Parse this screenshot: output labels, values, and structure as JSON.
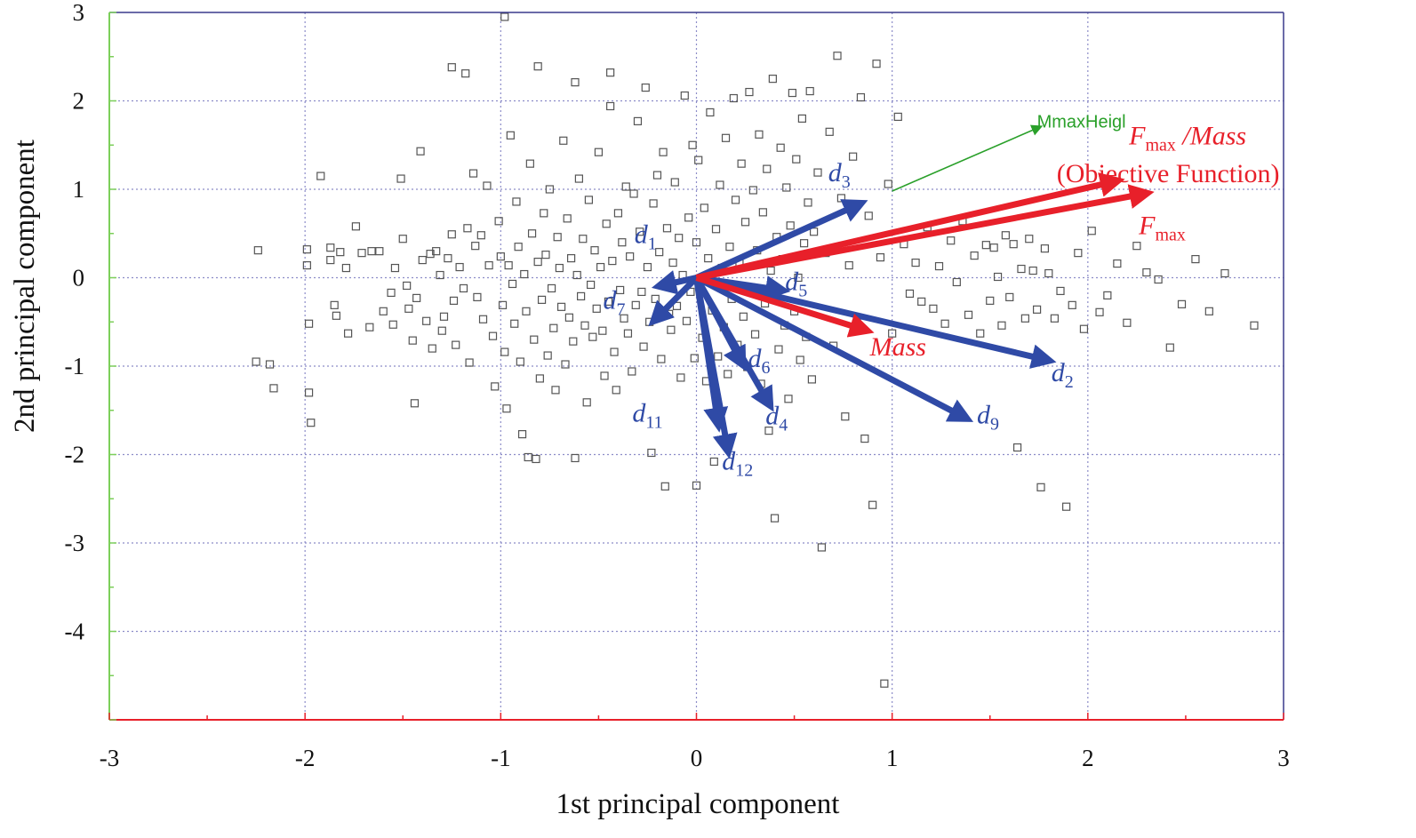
{
  "chart_data": {
    "type": "scatter",
    "title": "",
    "xlabel": "1st principal component",
    "ylabel": "2nd principal component",
    "xlim": [
      -3,
      3
    ],
    "ylim": [
      -5,
      3
    ],
    "xticks": [
      "-3",
      "-2",
      "-1",
      "0",
      "1",
      "2",
      "3"
    ],
    "yticks": [
      "-4",
      "-3",
      "-2",
      "-1",
      "0",
      "1",
      "2",
      "3"
    ],
    "grid": true,
    "colors": {
      "point": "#555555",
      "design_vector": "#2f4aa6",
      "objective_vector": "#e8202a",
      "minor_vector": "#2aa02a",
      "grid": "#8c8cc8",
      "left_axis": "#7ccf5a",
      "bottom_axis": "#e8202a",
      "frame": "#3a3a8c"
    },
    "points": [
      [
        -2.24,
        0.31
      ],
      [
        -2.25,
        -0.95
      ],
      [
        -2.18,
        -0.98
      ],
      [
        -2.16,
        -1.25
      ],
      [
        -1.99,
        0.32
      ],
      [
        -1.99,
        0.14
      ],
      [
        -1.98,
        -0.52
      ],
      [
        -1.98,
        -1.3
      ],
      [
        -1.97,
        -1.64
      ],
      [
        -1.92,
        1.15
      ],
      [
        -1.87,
        0.34
      ],
      [
        -1.87,
        0.2
      ],
      [
        -1.85,
        -0.31
      ],
      [
        -1.84,
        -0.43
      ],
      [
        -1.82,
        0.29
      ],
      [
        -1.79,
        0.11
      ],
      [
        -1.78,
        -0.63
      ],
      [
        -1.74,
        0.58
      ],
      [
        -1.71,
        0.28
      ],
      [
        -1.67,
        -0.56
      ],
      [
        -1.66,
        0.3
      ],
      [
        -1.62,
        0.3
      ],
      [
        -1.6,
        -0.38
      ],
      [
        -1.56,
        -0.17
      ],
      [
        -1.55,
        -0.53
      ],
      [
        -1.54,
        0.11
      ],
      [
        -1.51,
        1.12
      ],
      [
        -1.5,
        0.44
      ],
      [
        -1.48,
        -0.09
      ],
      [
        -1.47,
        -0.35
      ],
      [
        -1.45,
        -0.71
      ],
      [
        -1.44,
        -1.42
      ],
      [
        -1.43,
        -0.23
      ],
      [
        -1.41,
        1.43
      ],
      [
        -1.4,
        0.2
      ],
      [
        -1.38,
        -0.49
      ],
      [
        -1.36,
        0.27
      ],
      [
        -1.35,
        -0.8
      ],
      [
        -1.33,
        0.3
      ],
      [
        -1.31,
        0.03
      ],
      [
        -1.3,
        -0.6
      ],
      [
        -1.29,
        -0.44
      ],
      [
        -1.27,
        0.22
      ],
      [
        -1.25,
        0.49
      ],
      [
        -1.24,
        -0.26
      ],
      [
        -1.23,
        -0.76
      ],
      [
        -1.21,
        0.12
      ],
      [
        -1.19,
        -0.12
      ],
      [
        -1.17,
        0.56
      ],
      [
        -1.16,
        -0.96
      ],
      [
        -1.14,
        1.18
      ],
      [
        -1.13,
        0.36
      ],
      [
        -1.12,
        -0.22
      ],
      [
        -1.1,
        0.48
      ],
      [
        -1.09,
        -0.47
      ],
      [
        -1.07,
        1.04
      ],
      [
        -1.06,
        0.14
      ],
      [
        -1.04,
        -0.66
      ],
      [
        -1.03,
        -1.23
      ],
      [
        -1.01,
        0.64
      ],
      [
        -1.0,
        0.24
      ],
      [
        -0.99,
        -0.31
      ],
      [
        -0.98,
        -0.84
      ],
      [
        -0.97,
        -1.48
      ],
      [
        -0.96,
        0.14
      ],
      [
        -0.95,
        1.61
      ],
      [
        -0.94,
        -0.07
      ],
      [
        -0.93,
        -0.52
      ],
      [
        -0.92,
        0.86
      ],
      [
        -0.91,
        0.35
      ],
      [
        -0.9,
        -0.95
      ],
      [
        -0.89,
        -1.77
      ],
      [
        -0.88,
        0.04
      ],
      [
        -0.87,
        -0.38
      ],
      [
        -0.86,
        -2.03
      ],
      [
        -0.85,
        1.29
      ],
      [
        -0.84,
        0.5
      ],
      [
        -0.83,
        -0.7
      ],
      [
        -0.82,
        -2.05
      ],
      [
        -0.81,
        0.18
      ],
      [
        -0.8,
        -1.14
      ],
      [
        -0.79,
        -0.25
      ],
      [
        -0.78,
        0.73
      ],
      [
        -0.77,
        0.26
      ],
      [
        -0.76,
        -0.88
      ],
      [
        -0.75,
        1.0
      ],
      [
        -0.74,
        -0.12
      ],
      [
        -0.73,
        -0.57
      ],
      [
        -0.72,
        -1.27
      ],
      [
        -0.71,
        0.46
      ],
      [
        -0.7,
        0.11
      ],
      [
        -0.69,
        -0.33
      ],
      [
        -0.68,
        1.55
      ],
      [
        -0.67,
        -0.98
      ],
      [
        -0.66,
        0.67
      ],
      [
        -0.65,
        -0.45
      ],
      [
        -0.64,
        0.22
      ],
      [
        -0.63,
        -0.72
      ],
      [
        -0.62,
        -2.04
      ],
      [
        -0.61,
        0.03
      ],
      [
        -0.6,
        1.12
      ],
      [
        -0.59,
        -0.21
      ],
      [
        -0.58,
        0.44
      ],
      [
        -0.57,
        -0.54
      ],
      [
        -0.56,
        -1.41
      ],
      [
        -0.55,
        0.88
      ],
      [
        -0.54,
        -0.08
      ],
      [
        -0.53,
        -0.67
      ],
      [
        -0.52,
        0.31
      ],
      [
        -0.51,
        -0.35
      ],
      [
        -0.5,
        1.42
      ],
      [
        -0.49,
        0.12
      ],
      [
        -0.48,
        -0.6
      ],
      [
        -0.47,
        -1.11
      ],
      [
        -0.46,
        0.61
      ],
      [
        -0.45,
        -0.27
      ],
      [
        -0.44,
        1.94
      ],
      [
        -0.43,
        0.19
      ],
      [
        -0.42,
        -0.84
      ],
      [
        -0.41,
        -1.27
      ],
      [
        -0.4,
        0.73
      ],
      [
        -0.39,
        -0.14
      ],
      [
        -0.38,
        0.4
      ],
      [
        -0.37,
        -0.46
      ],
      [
        -0.36,
        1.03
      ],
      [
        -0.35,
        -0.63
      ],
      [
        -0.34,
        0.24
      ],
      [
        -0.33,
        -1.06
      ],
      [
        -0.32,
        0.95
      ],
      [
        -0.31,
        -0.31
      ],
      [
        -0.3,
        1.77
      ],
      [
        -0.29,
        0.52
      ],
      [
        -0.28,
        -0.16
      ],
      [
        -0.27,
        -0.78
      ],
      [
        -0.26,
        2.15
      ],
      [
        -0.25,
        0.12
      ],
      [
        -0.24,
        -0.5
      ],
      [
        -0.23,
        -1.98
      ],
      [
        -0.22,
        0.84
      ],
      [
        -0.21,
        -0.24
      ],
      [
        -0.2,
        1.16
      ],
      [
        -0.19,
        0.29
      ],
      [
        -0.18,
        -0.92
      ],
      [
        -0.17,
        1.42
      ],
      [
        -0.16,
        -2.36
      ],
      [
        -0.15,
        0.56
      ],
      [
        -0.14,
        -0.41
      ],
      [
        -0.13,
        -0.59
      ],
      [
        -0.12,
        0.17
      ],
      [
        -0.11,
        1.08
      ],
      [
        -0.1,
        -0.32
      ],
      [
        -0.09,
        0.45
      ],
      [
        -0.08,
        -1.13
      ],
      [
        -0.07,
        0.03
      ],
      [
        -0.06,
        2.06
      ],
      [
        -0.05,
        -0.49
      ],
      [
        -0.04,
        0.68
      ],
      [
        -0.03,
        -0.16
      ],
      [
        -0.02,
        1.5
      ],
      [
        -0.01,
        -0.91
      ],
      [
        0.0,
        0.4
      ],
      [
        0.0,
        -2.35
      ],
      [
        0.01,
        1.33
      ],
      [
        0.02,
        -0.05
      ],
      [
        0.03,
        -0.68
      ],
      [
        0.04,
        0.79
      ],
      [
        0.05,
        -1.17
      ],
      [
        0.06,
        0.22
      ],
      [
        0.07,
        1.87
      ],
      [
        0.08,
        -0.37
      ],
      [
        0.09,
        -2.08
      ],
      [
        0.1,
        0.55
      ],
      [
        0.11,
        -0.89
      ],
      [
        0.12,
        1.05
      ],
      [
        0.13,
        0.11
      ],
      [
        0.14,
        -0.56
      ],
      [
        0.15,
        1.58
      ],
      [
        0.16,
        -1.09
      ],
      [
        0.17,
        0.35
      ],
      [
        0.18,
        -0.24
      ],
      [
        0.19,
        2.03
      ],
      [
        0.2,
        0.88
      ],
      [
        0.21,
        -0.76
      ],
      [
        0.22,
        0.16
      ],
      [
        0.23,
        1.29
      ],
      [
        0.24,
        -0.44
      ],
      [
        0.25,
        0.63
      ],
      [
        0.26,
        -1.01
      ],
      [
        0.27,
        2.1
      ],
      [
        0.28,
        -0.11
      ],
      [
        0.29,
        0.99
      ],
      [
        0.3,
        -0.64
      ],
      [
        0.31,
        0.31
      ],
      [
        0.32,
        1.62
      ],
      [
        0.33,
        -1.2
      ],
      [
        0.34,
        0.74
      ],
      [
        0.35,
        -0.29
      ],
      [
        0.36,
        1.23
      ],
      [
        0.37,
        -1.73
      ],
      [
        0.38,
        0.08
      ],
      [
        0.39,
        2.25
      ],
      [
        0.4,
        -2.72
      ],
      [
        0.41,
        0.46
      ],
      [
        0.42,
        -0.81
      ],
      [
        0.43,
        1.47
      ],
      [
        0.44,
        0.21
      ],
      [
        0.45,
        -0.54
      ],
      [
        0.46,
        1.02
      ],
      [
        0.47,
        -1.37
      ],
      [
        0.48,
        0.59
      ],
      [
        0.49,
        2.09
      ],
      [
        0.5,
        -0.38
      ],
      [
        0.51,
        1.34
      ],
      [
        0.52,
        0.0
      ],
      [
        0.53,
        -0.93
      ],
      [
        0.54,
        1.8
      ],
      [
        0.55,
        0.39
      ],
      [
        0.56,
        -0.67
      ],
      [
        0.57,
        0.85
      ],
      [
        0.58,
        2.11
      ],
      [
        0.59,
        -1.15
      ],
      [
        0.6,
        0.52
      ],
      [
        0.62,
        1.19
      ],
      [
        0.64,
        -3.05
      ],
      [
        0.66,
        0.28
      ],
      [
        0.68,
        1.65
      ],
      [
        0.7,
        -0.77
      ],
      [
        0.72,
        2.51
      ],
      [
        0.74,
        0.9
      ],
      [
        0.76,
        -1.57
      ],
      [
        0.78,
        0.14
      ],
      [
        0.8,
        1.37
      ],
      [
        0.82,
        -0.48
      ],
      [
        0.84,
        2.04
      ],
      [
        0.86,
        -1.82
      ],
      [
        0.88,
        0.7
      ],
      [
        0.9,
        -2.57
      ],
      [
        0.92,
        2.42
      ],
      [
        0.94,
        0.23
      ],
      [
        0.96,
        -4.59
      ],
      [
        0.98,
        1.06
      ],
      [
        1.0,
        -0.63
      ],
      [
        1.03,
        1.82
      ],
      [
        1.06,
        0.38
      ],
      [
        1.09,
        -0.18
      ],
      [
        1.12,
        0.17
      ],
      [
        1.15,
        -0.27
      ],
      [
        1.18,
        0.57
      ],
      [
        1.21,
        -0.35
      ],
      [
        1.24,
        0.13
      ],
      [
        1.27,
        -0.52
      ],
      [
        1.3,
        0.42
      ],
      [
        1.33,
        -0.05
      ],
      [
        1.36,
        0.64
      ],
      [
        1.39,
        -0.42
      ],
      [
        1.42,
        0.25
      ],
      [
        1.45,
        -0.63
      ],
      [
        1.48,
        0.37
      ],
      [
        1.5,
        -0.26
      ],
      [
        1.52,
        0.34
      ],
      [
        1.54,
        0.01
      ],
      [
        1.56,
        -0.54
      ],
      [
        1.58,
        0.48
      ],
      [
        1.6,
        -0.22
      ],
      [
        1.62,
        0.38
      ],
      [
        1.64,
        -1.92
      ],
      [
        1.66,
        0.1
      ],
      [
        1.68,
        -0.46
      ],
      [
        1.7,
        0.44
      ],
      [
        1.72,
        0.08
      ],
      [
        1.74,
        -0.36
      ],
      [
        1.76,
        -2.37
      ],
      [
        1.78,
        0.33
      ],
      [
        1.8,
        0.05
      ],
      [
        1.83,
        -0.46
      ],
      [
        1.86,
        -0.15
      ],
      [
        1.89,
        -2.59
      ],
      [
        1.92,
        -0.31
      ],
      [
        1.95,
        0.28
      ],
      [
        1.98,
        -0.58
      ],
      [
        2.02,
        0.53
      ],
      [
        2.06,
        -0.39
      ],
      [
        2.1,
        -0.2
      ],
      [
        2.15,
        0.16
      ],
      [
        2.2,
        -0.51
      ],
      [
        2.25,
        0.36
      ],
      [
        2.3,
        0.06
      ],
      [
        2.36,
        -0.02
      ],
      [
        2.42,
        -0.79
      ],
      [
        2.48,
        -0.3
      ],
      [
        2.55,
        0.21
      ],
      [
        2.62,
        -0.38
      ],
      [
        2.7,
        0.05
      ],
      [
        2.85,
        -0.54
      ],
      [
        -0.98,
        2.95
      ],
      [
        -1.25,
        2.38
      ],
      [
        -1.18,
        2.31
      ],
      [
        -0.81,
        2.39
      ],
      [
        -0.62,
        2.21
      ],
      [
        -0.44,
        2.32
      ]
    ],
    "arrows": [
      {
        "name": "d_1",
        "kind": "design",
        "from": [
          0,
          0
        ],
        "to": [
          -0.18,
          -0.09
        ]
      },
      {
        "name": "d_7",
        "kind": "design",
        "from": [
          0,
          0
        ],
        "to": [
          -0.21,
          -0.47
        ]
      },
      {
        "name": "d_3",
        "kind": "design",
        "from": [
          0,
          0
        ],
        "to": [
          0.83,
          0.83
        ]
      },
      {
        "name": "d_5",
        "kind": "design",
        "from": [
          0,
          0
        ],
        "to": [
          0.43,
          -0.14
        ]
      },
      {
        "name": "d_2",
        "kind": "design",
        "from": [
          0,
          0
        ],
        "to": [
          1.79,
          -0.93
        ]
      },
      {
        "name": "d_9",
        "kind": "design",
        "from": [
          0,
          0
        ],
        "to": [
          1.37,
          -1.58
        ]
      },
      {
        "name": "d_6",
        "kind": "design",
        "from": [
          0,
          0
        ],
        "to": [
          0.23,
          -0.96
        ]
      },
      {
        "name": "d_4",
        "kind": "design",
        "from": [
          0,
          0
        ],
        "to": [
          0.37,
          -1.42
        ]
      },
      {
        "name": "d_11",
        "kind": "design",
        "from": [
          0,
          0
        ],
        "to": [
          0.11,
          -1.64
        ]
      },
      {
        "name": "d_12",
        "kind": "design",
        "from": [
          0,
          0
        ],
        "to": [
          0.16,
          -1.94
        ]
      },
      {
        "name": "F_max/Mass",
        "kind": "objective",
        "from": [
          0,
          0
        ],
        "to": [
          2.14,
          1.09
        ]
      },
      {
        "name": "F_max",
        "kind": "objective",
        "from": [
          0,
          0
        ],
        "to": [
          2.29,
          0.95
        ]
      },
      {
        "name": "Mass",
        "kind": "objective",
        "from": [
          0,
          0
        ],
        "to": [
          0.86,
          -0.59
        ]
      },
      {
        "name": "MmaxHeigl",
        "kind": "minor",
        "from": [
          1.0,
          0.98
        ],
        "to": [
          1.75,
          1.7
        ]
      }
    ],
    "annotations": [
      {
        "main": "d",
        "sub": "1",
        "x": -0.26,
        "y": 0.39,
        "kind": "design"
      },
      {
        "main": "d",
        "sub": "7",
        "x": -0.42,
        "y": -0.35,
        "kind": "design"
      },
      {
        "main": "d",
        "sub": "3",
        "x": 0.73,
        "y": 1.09,
        "kind": "design"
      },
      {
        "main": "d",
        "sub": "5",
        "x": 0.51,
        "y": -0.14,
        "kind": "design"
      },
      {
        "main": "d",
        "sub": "2",
        "x": 1.87,
        "y": -1.17,
        "kind": "design"
      },
      {
        "main": "d",
        "sub": "9",
        "x": 1.49,
        "y": -1.65,
        "kind": "design"
      },
      {
        "main": "d",
        "sub": "6",
        "x": 0.32,
        "y": -1.01,
        "kind": "design"
      },
      {
        "main": "d",
        "sub": "4",
        "x": 0.41,
        "y": -1.66,
        "kind": "design"
      },
      {
        "main": "d",
        "sub": "11",
        "x": -0.25,
        "y": -1.63,
        "kind": "design"
      },
      {
        "main": "d",
        "sub": "12",
        "x": 0.21,
        "y": -2.17,
        "kind": "design"
      },
      {
        "main": "F",
        "sub": "max",
        "suffix": " /Mass",
        "x": 2.51,
        "y": 1.51,
        "kind": "objective"
      },
      {
        "text": "(Objective Function)",
        "x": 2.41,
        "y": 1.08,
        "kind": "objective"
      },
      {
        "main": "F",
        "sub": "max",
        "x": 2.38,
        "y": 0.49,
        "kind": "objective"
      },
      {
        "text": "Mass",
        "italic": true,
        "x": 1.03,
        "y": -0.88,
        "kind": "objective"
      },
      {
        "text": "MmaxHeigl",
        "x": 1.74,
        "y": 1.7,
        "kind": "minor",
        "anchor": "start"
      }
    ]
  }
}
